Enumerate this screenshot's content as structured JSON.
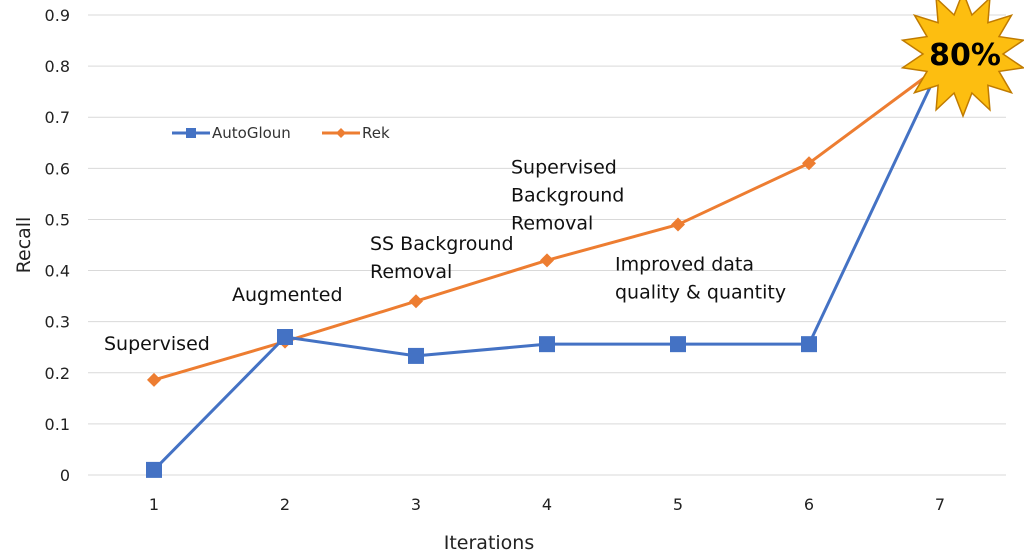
{
  "chart_data": {
    "type": "line",
    "title": "",
    "xlabel": "Iterations",
    "ylabel": "Recall",
    "ylim": [
      0,
      0.9
    ],
    "grid": true,
    "legend_position": "top-left",
    "x": [
      1,
      2,
      3,
      4,
      5,
      6,
      7
    ],
    "x_tick_labels": [
      "1",
      "2",
      "3",
      "4",
      "5",
      "6",
      "7"
    ],
    "y_tick_labels": [
      "0",
      "0.1",
      "0.2",
      "0.3",
      "0.4",
      "0.5",
      "0.6",
      "0.7",
      "0.8",
      "0.9"
    ],
    "series": [
      {
        "name": "AutoGloun",
        "color": "#4472C4",
        "marker": "square",
        "values": [
          0.01,
          0.27,
          0.233,
          0.256,
          0.256,
          0.256,
          0.8
        ]
      },
      {
        "name": "Rek",
        "color": "#ED7D31",
        "marker": "diamond",
        "values": [
          0.186,
          0.261,
          0.34,
          0.42,
          0.49,
          0.61,
          0.8
        ]
      }
    ],
    "annotations": [
      {
        "lines": [
          "Supervised"
        ],
        "anchor_x": 1,
        "anchor_y": 0.245
      },
      {
        "lines": [
          "Augmented"
        ],
        "anchor_x": 2,
        "anchor_y": 0.34
      },
      {
        "lines": [
          "SS Background",
          "Removal"
        ],
        "anchor_x": 3,
        "anchor_y": 0.44
      },
      {
        "lines": [
          "Supervised",
          "Background",
          "Removal"
        ],
        "anchor_x": 4,
        "anchor_y": 0.59
      },
      {
        "lines": [
          "Improved data",
          "quality & quantity"
        ],
        "anchor_x": 5,
        "anchor_y": 0.4
      }
    ],
    "badge": {
      "text": "80%",
      "fill": "#FDBE10",
      "stroke": "#C07B00"
    }
  }
}
